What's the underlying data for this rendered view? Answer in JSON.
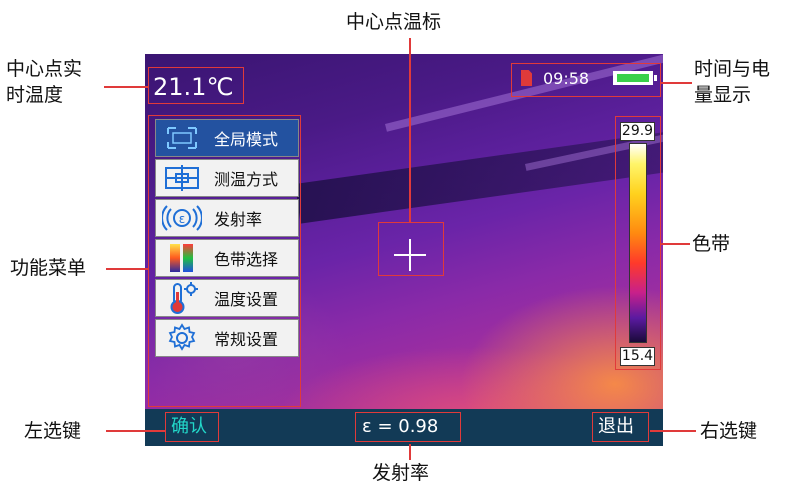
{
  "annotations": {
    "center_temp_label": "中心点实\n时温度",
    "center_marker_label": "中心点温标",
    "time_power_label": "时间与电\n量显示",
    "color_band_label": "色带",
    "menu_label": "功能菜单",
    "left_key_label": "左选键",
    "emissivity_label": "发射率",
    "right_key_label": "右选键"
  },
  "screen": {
    "center_temperature": "21.1℃",
    "time": "09:58",
    "colorbar": {
      "max": "29.9",
      "min": "15.4"
    },
    "menu": [
      {
        "label": "全局模式",
        "icon": "frame-icon",
        "selected": true
      },
      {
        "label": "测温方式",
        "icon": "crosshair-box-icon",
        "selected": false
      },
      {
        "label": "发射率",
        "icon": "emissivity-icon",
        "selected": false
      },
      {
        "label": "色带选择",
        "icon": "palette-icon",
        "selected": false
      },
      {
        "label": "温度设置",
        "icon": "thermometer-gear-icon",
        "selected": false
      },
      {
        "label": "常规设置",
        "icon": "gear-icon",
        "selected": false
      }
    ],
    "bottom_bar": {
      "left": "确认",
      "center": "ε = 0.98",
      "right": "退出"
    }
  },
  "colors": {
    "accent": "#e03a3a",
    "menu_selected": "#2352a0",
    "bar_bg": "#123a56",
    "bar_text": "#22d7c9"
  }
}
